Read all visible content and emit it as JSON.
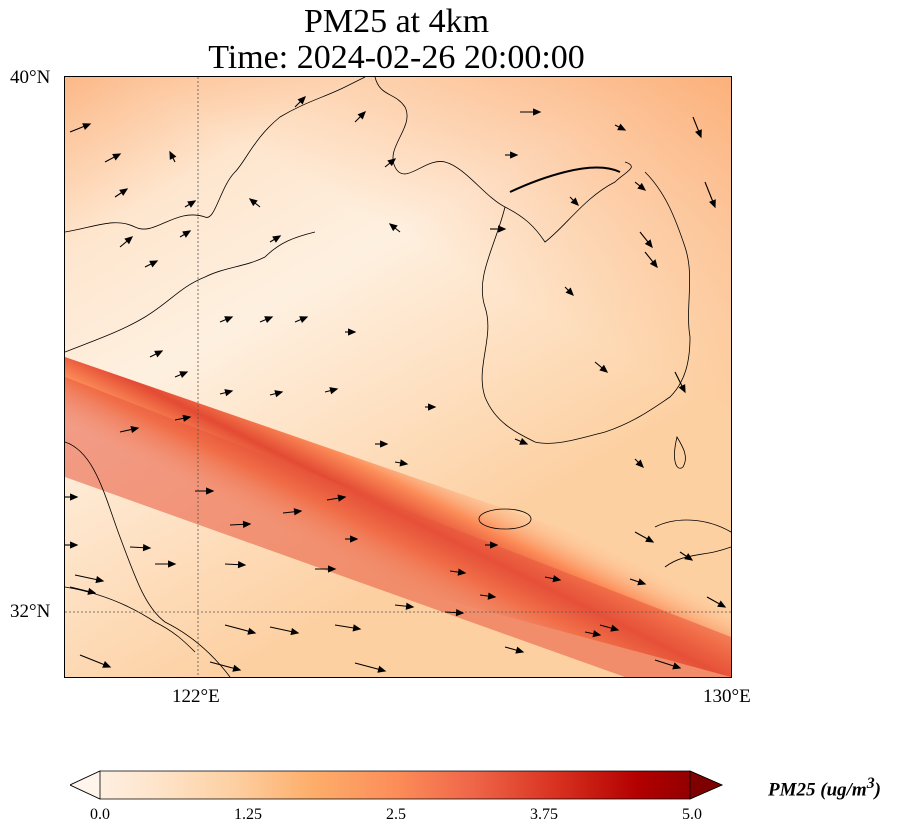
{
  "title_line1": "PM25 at 4km",
  "title_line2": "Time: 2024-02-26 20:00:00",
  "axes": {
    "lat_ticks": [
      "40°N",
      "32°N"
    ],
    "lon_ticks": [
      "122°E",
      "130°E"
    ],
    "lon_range": [
      120,
      130
    ],
    "lat_range": [
      31,
      40
    ]
  },
  "colorbar": {
    "label_main": "PM25 (ug/m",
    "label_sup": "3",
    "label_end": ")",
    "ticks": [
      "0.0",
      "1.25",
      "2.5",
      "3.75",
      "5.0"
    ],
    "range": [
      0.0,
      5.0
    ],
    "colormap": [
      "#fff5eb",
      "#fee6ce",
      "#fdd0a2",
      "#fdae6b",
      "#fd8d3c",
      "#f16913",
      "#d94801",
      "#a63603",
      "#7f2704"
    ],
    "extend": "both"
  },
  "colors": {
    "background_field": "#fde4c4",
    "plume": "#e8553c",
    "coastline": "#000000",
    "gridline": "#555555"
  }
}
